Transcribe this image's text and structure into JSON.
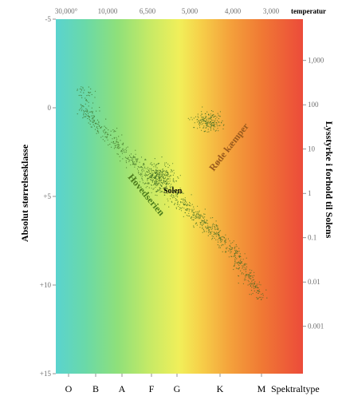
{
  "chart_data": {
    "type": "scatter",
    "title": "",
    "xlabel": "Spektraltype",
    "ylabel": "Absolut størrelsesklasse",
    "y2label": "Lysstyrke i forhold til Solens",
    "x2label": "temperatur",
    "ylim": [
      -5,
      15
    ],
    "y_inverted": true,
    "x_categories": [
      "O",
      "B",
      "A",
      "F",
      "G",
      "K",
      "M"
    ],
    "top_ticks": [
      "30,000°",
      "10,000",
      "6,500",
      "5,000",
      "4,000",
      "3,000"
    ],
    "left_ticks": [
      {
        "label": "-5",
        "value": -5
      },
      {
        "label": "0",
        "value": 0
      },
      {
        "label": "+5",
        "value": 5
      },
      {
        "label": "+10",
        "value": 10
      },
      {
        "label": "+15",
        "value": 15
      }
    ],
    "right_ticks": [
      {
        "label": "1,000",
        "value": 1000
      },
      {
        "label": "100",
        "value": 100
      },
      {
        "label": "10",
        "value": 10
      },
      {
        "label": "1",
        "value": 1
      },
      {
        "label": "0.1",
        "value": 0.1
      },
      {
        "label": "0.01",
        "value": 0.01
      },
      {
        "label": "0.001",
        "value": 0.001
      }
    ],
    "background": "spectral color gradient from blue-green (O) through green, yellow, orange to red (M)",
    "regions": [
      {
        "name": "Hovedserien",
        "description": "main sequence, diagonal band from upper-left to lower-right"
      },
      {
        "name": "Røde kæmper",
        "description": "red giants cluster above-right of main sequence"
      }
    ],
    "annotations": [
      {
        "text": "Hovedserien",
        "color": "#4a7a1a"
      },
      {
        "text": "Røde kæmper",
        "color": "#9a5a1c"
      },
      {
        "text": "Solen",
        "color": "#000000"
      }
    ],
    "dot_color": "#3a6a20"
  }
}
